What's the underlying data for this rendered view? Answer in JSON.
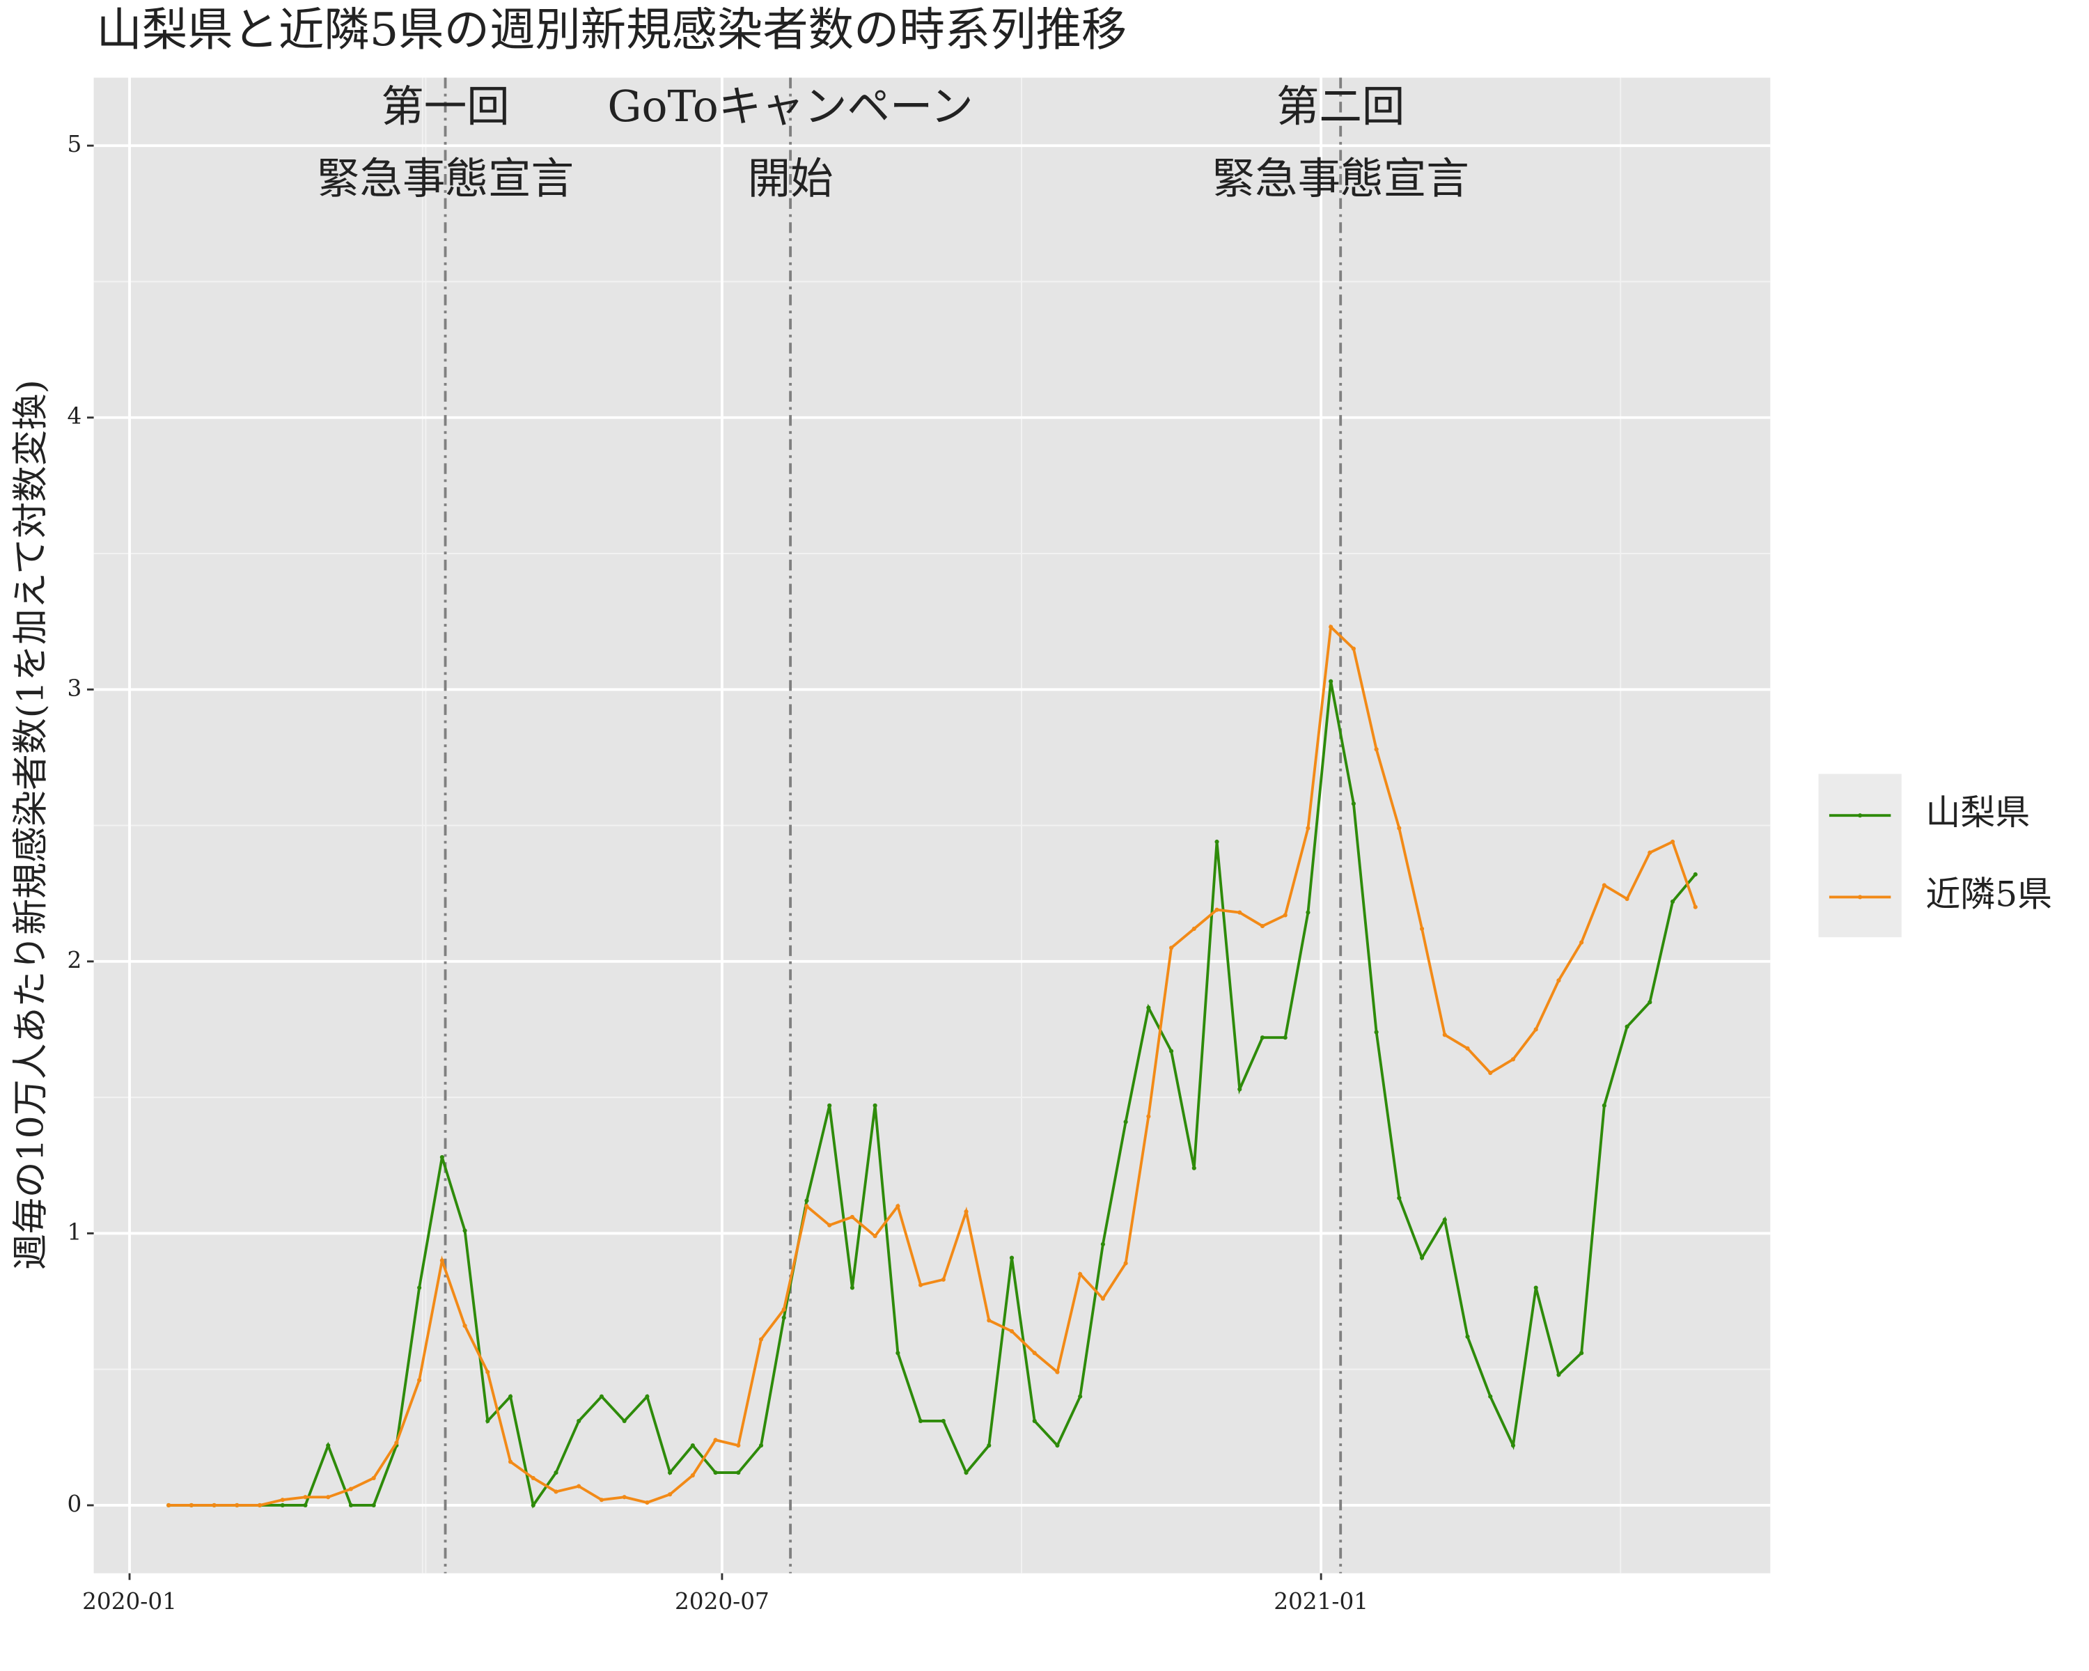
{
  "chart_data": {
    "type": "line",
    "title": "山梨県と近隣5県の週別新規感染者数の時系列推移",
    "y_label": "週毎の10万人あたり新規感染者数(1を加えて対数変換)",
    "x": [
      12,
      19,
      26,
      33,
      40,
      47,
      54,
      61,
      68,
      75,
      82,
      89,
      96,
      103,
      110,
      117,
      124,
      131,
      138,
      145,
      152,
      159,
      166,
      173,
      180,
      187,
      194,
      201,
      208,
      215,
      222,
      229,
      236,
      243,
      250,
      257,
      264,
      271,
      278,
      285,
      292,
      299,
      306,
      313,
      320,
      327,
      334,
      341,
      348,
      355,
      362,
      369,
      376,
      383,
      390,
      397,
      404,
      411,
      418,
      425,
      432,
      439,
      446,
      453,
      460,
      467,
      474,
      481
    ],
    "series": [
      {
        "name": "山梨県",
        "color": "#2e8b0a",
        "values": [
          0,
          0,
          0,
          0,
          0,
          0,
          0,
          0.22,
          0,
          0,
          0.22,
          0.8,
          1.28,
          1.01,
          0.31,
          0.4,
          0,
          0.12,
          0.31,
          0.4,
          0.31,
          0.4,
          0.12,
          0.22,
          0.12,
          0.12,
          0.22,
          0.69,
          1.12,
          1.47,
          0.8,
          1.47,
          0.56,
          0.31,
          0.31,
          0.12,
          0.22,
          0.91,
          0.31,
          0.22,
          0.4,
          0.96,
          1.41,
          1.83,
          1.67,
          1.24,
          2.44,
          1.53,
          1.72,
          1.72,
          2.18,
          3.03,
          2.58,
          1.74,
          1.13,
          0.91,
          1.05,
          0.62,
          0.4,
          0.22,
          0.8,
          0.48,
          0.56,
          1.47,
          1.76,
          1.85,
          2.22,
          2.32
        ]
      },
      {
        "name": "近隣5県",
        "color": "#f28a17",
        "values": [
          0,
          0,
          0,
          0,
          0,
          0.02,
          0.03,
          0.03,
          0.06,
          0.1,
          0.23,
          0.46,
          0.9,
          0.66,
          0.49,
          0.16,
          0.1,
          0.05,
          0.07,
          0.02,
          0.03,
          0.01,
          0.04,
          0.11,
          0.24,
          0.22,
          0.61,
          0.72,
          1.1,
          1.03,
          1.06,
          0.99,
          1.1,
          0.81,
          0.83,
          1.08,
          0.68,
          0.64,
          0.56,
          0.49,
          0.85,
          0.76,
          0.89,
          1.43,
          2.05,
          2.12,
          2.19,
          2.18,
          2.13,
          2.17,
          2.49,
          3.23,
          3.15,
          2.78,
          2.49,
          2.12,
          1.73,
          1.68,
          1.59,
          1.64,
          1.75,
          1.93,
          2.07,
          2.28,
          2.23,
          2.4,
          2.44,
          2.2
        ]
      }
    ],
    "xlim": [
      -11,
      504
    ],
    "xticks": [
      {
        "value": 0,
        "label": "2020-01"
      },
      {
        "value": 182,
        "label": "2020-07"
      },
      {
        "value": 366,
        "label": "2021-01"
      }
    ],
    "ylim": [
      -0.25,
      5.25
    ],
    "yticks": [
      0,
      1,
      2,
      3,
      4,
      5
    ],
    "grid": true,
    "legend": "right",
    "vlines": [
      {
        "x": 97,
        "labels": [
          "第一回",
          "緊急事態宣言"
        ]
      },
      {
        "x": 203,
        "labels": [
          "GoToキャンペーン",
          "開始"
        ]
      },
      {
        "x": 372,
        "labels": [
          "第二回",
          "緊急事態宣言"
        ]
      }
    ]
  }
}
